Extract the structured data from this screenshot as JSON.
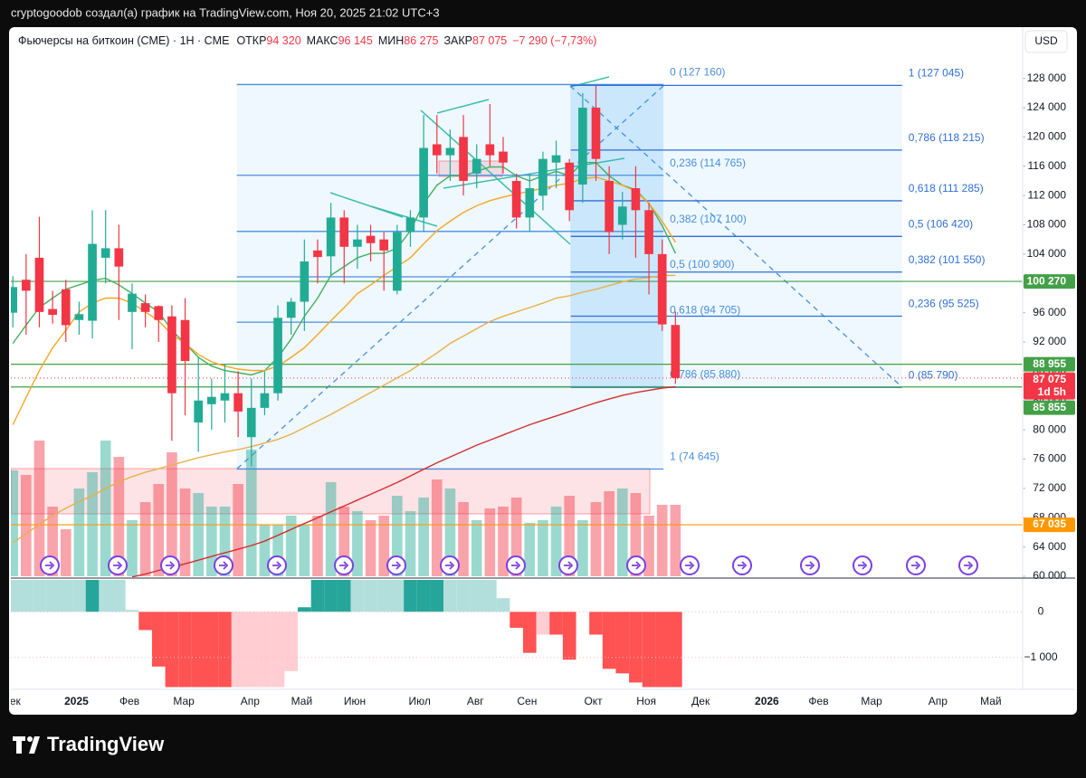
{
  "attribution": "cryptogoodob создал(а) график на TradingView.com, Ноя 20, 2025 21:02 UTC+3",
  "currency": "USD",
  "logo": "TradingView",
  "chart_data": {
    "type": "candlestick",
    "title": "Фьючерсы на биткоин (CME) · 1Н · CME",
    "legend": [
      {
        "name": "ОТКР",
        "value": "94 320"
      },
      {
        "name": "МАКС",
        "value": "96 145"
      },
      {
        "name": "МИН",
        "value": "86 275"
      },
      {
        "name": "ЗАКР",
        "value": "87 075"
      }
    ],
    "change": "−7 290 (−7,73%)",
    "xlim": [
      -0.15,
      76.2
    ],
    "xticks": [
      {
        "value": -0.1,
        "label": "Дек"
      },
      {
        "value": 4.8,
        "label": "2025"
      },
      {
        "value": 8.8,
        "label": "Фев"
      },
      {
        "value": 12.9,
        "label": "Мар"
      },
      {
        "value": 17.9,
        "label": "Апр"
      },
      {
        "value": 21.8,
        "label": "Май"
      },
      {
        "value": 25.8,
        "label": "Июн"
      },
      {
        "value": 30.7,
        "label": "Июл"
      },
      {
        "value": 34.9,
        "label": "Авг"
      },
      {
        "value": 38.8,
        "label": "Сен"
      },
      {
        "value": 43.8,
        "label": "Окт"
      },
      {
        "value": 47.8,
        "label": "Ноя"
      },
      {
        "value": 51.9,
        "label": "Дек"
      },
      {
        "value": 56.9,
        "label": "2026"
      },
      {
        "value": 60.8,
        "label": "Фев"
      },
      {
        "value": 64.8,
        "label": "Мар"
      },
      {
        "value": 69.8,
        "label": "Апр"
      },
      {
        "value": 73.8,
        "label": "Май"
      }
    ],
    "ylim": [
      60000,
      135000
    ],
    "yticks": [
      {
        "value": 60000,
        "label": "60 000"
      },
      {
        "value": 64000,
        "label": "64 000"
      },
      {
        "value": 68000,
        "label": "68 000"
      },
      {
        "value": 72000,
        "label": "72 000"
      },
      {
        "value": 76000,
        "label": "76 000"
      },
      {
        "value": 80000,
        "label": "80 000"
      },
      {
        "value": 84000,
        "label": "84 000"
      },
      {
        "value": 88000,
        "label": "88 000"
      },
      {
        "value": 92000,
        "label": "92 000"
      },
      {
        "value": 96000,
        "label": "96 000"
      },
      {
        "value": 100000,
        "label": "100 000"
      },
      {
        "value": 104000,
        "label": "104 000"
      },
      {
        "value": 108000,
        "label": "108 000"
      },
      {
        "value": 112000,
        "label": "112 000"
      },
      {
        "value": 116000,
        "label": "116 000"
      },
      {
        "value": 120000,
        "label": "120 000"
      },
      {
        "value": 124000,
        "label": "124 000"
      },
      {
        "value": 128000,
        "label": "128 000"
      }
    ],
    "up_color": "#22ab94",
    "down_color": "#f23645",
    "open": [
      96000,
      100500,
      103500,
      96500,
      99200,
      95000,
      94900,
      103500,
      104800,
      96100,
      97300,
      96900,
      95500,
      95000,
      81000,
      83500,
      84000,
      85000,
      79000,
      83000,
      85000,
      95300,
      97500,
      104500,
      103700,
      109000,
      105000,
      106500,
      106000,
      99000,
      107000,
      109000,
      119000,
      117500,
      120000,
      115000,
      119000,
      118000,
      114000,
      109000,
      112000,
      116500,
      116500,
      113500,
      124000,
      114000,
      108000,
      113000,
      110000,
      104000,
      94320
    ],
    "high": [
      101000,
      104000,
      109100,
      99000,
      100500,
      97500,
      110000,
      110000,
      108000,
      100000,
      98500,
      97000,
      97000,
      98000,
      90000,
      87000,
      89000,
      88000,
      87000,
      88000,
      97000,
      98000,
      106000,
      106000,
      111000,
      110000,
      108000,
      108000,
      107000,
      108000,
      110000,
      123000,
      123000,
      121000,
      123000,
      119000,
      124500,
      120000,
      115000,
      115000,
      118000,
      119500,
      117000,
      126000,
      127000,
      116000,
      112500,
      116000,
      111000,
      106000,
      96145
    ],
    "low": [
      94000,
      93000,
      94000,
      94500,
      92000,
      93000,
      92500,
      100000,
      95000,
      91000,
      94000,
      92000,
      78500,
      82000,
      77000,
      80000,
      81000,
      79000,
      75000,
      82000,
      84000,
      93000,
      93500,
      100000,
      101000,
      100000,
      102000,
      103000,
      99000,
      98500,
      105000,
      107000,
      115000,
      114000,
      112000,
      113000,
      116000,
      115000,
      107500,
      107000,
      110000,
      113000,
      108500,
      111000,
      114000,
      104000,
      106000,
      103500,
      98500,
      93500,
      86275
    ],
    "close": [
      99500,
      99000,
      96100,
      95700,
      94300,
      95800,
      105400,
      104800,
      102300,
      98600,
      96100,
      95000,
      85000,
      89400,
      84000,
      84500,
      85000,
      82500,
      83000,
      85000,
      95300,
      97500,
      103000,
      103600,
      109000,
      105000,
      106000,
      105500,
      104500,
      107000,
      109000,
      118500,
      117500,
      118500,
      114000,
      117000,
      117500,
      116500,
      109000,
      113000,
      117000,
      117500,
      110000,
      124000,
      117000,
      107000,
      110500,
      110000,
      104000,
      94400,
      87075
    ],
    "volume": {
      "vlim": [
        0,
        200
      ],
      "values": [
        117,
        112,
        150,
        77,
        52,
        97,
        115,
        150,
        132,
        62,
        82,
        102,
        137,
        97,
        92,
        77,
        77,
        102,
        140,
        57,
        57,
        67,
        57,
        67,
        104,
        77,
        72,
        62,
        67,
        89,
        72,
        87,
        107,
        97,
        82,
        62,
        75,
        77,
        87,
        59,
        62,
        77,
        89,
        62,
        82,
        94,
        97,
        92,
        67,
        79,
        79
      ]
    },
    "moving_averages": [
      {
        "color": "#43b05c",
        "values": [
          91800,
          94300,
          96700,
          98000,
          99200,
          99800,
          100400,
          100700,
          99800,
          98600,
          97300,
          96100,
          93600,
          91800,
          89900,
          88700,
          88100,
          87800,
          87500,
          88100,
          89900,
          92400,
          95500,
          98000,
          101100,
          102300,
          103500,
          104100,
          104100,
          104800,
          107200,
          110900,
          113400,
          114700,
          114700,
          115300,
          115900,
          115900,
          114700,
          114000,
          114700,
          115300,
          114700,
          116500,
          116500,
          114700,
          113400,
          112800,
          110900,
          107900,
          104100
        ]
      },
      {
        "color": "#f5a623",
        "values": [
          80700,
          84400,
          88100,
          91200,
          93600,
          96100,
          97300,
          98000,
          98000,
          97300,
          96100,
          94900,
          93000,
          91800,
          90300,
          89300,
          88700,
          88300,
          88100,
          88100,
          88700,
          89900,
          91200,
          93000,
          94900,
          96700,
          98600,
          99800,
          101100,
          102300,
          103500,
          105400,
          107200,
          108500,
          109700,
          110600,
          111300,
          111800,
          112200,
          112600,
          113000,
          113400,
          113700,
          114300,
          114500,
          114000,
          113400,
          112600,
          110900,
          108500,
          105600
        ]
      },
      {
        "color": "#e8b04a",
        "values": [
          64600,
          65800,
          67100,
          68300,
          69300,
          70200,
          71000,
          72000,
          72900,
          73600,
          74200,
          74700,
          75200,
          75700,
          76200,
          76600,
          77000,
          77300,
          77700,
          78200,
          78700,
          79400,
          80300,
          81200,
          82100,
          83100,
          84100,
          85100,
          86100,
          87100,
          88100,
          89300,
          90500,
          91800,
          92800,
          93800,
          94800,
          95500,
          96100,
          96700,
          97300,
          98000,
          98300,
          98800,
          99200,
          99700,
          100200,
          100600,
          100800,
          101100,
          101100
        ]
      },
      {
        "color": "#d32f2f",
        "values": [
          null,
          null,
          null,
          null,
          null,
          null,
          null,
          null,
          null,
          59900,
          60300,
          60800,
          61200,
          61700,
          62200,
          62700,
          63200,
          63700,
          64200,
          64800,
          65600,
          66400,
          67200,
          68000,
          68800,
          69600,
          70400,
          71200,
          72000,
          72800,
          73700,
          74600,
          75500,
          76300,
          77100,
          77900,
          78600,
          79300,
          80000,
          80700,
          81300,
          81900,
          82500,
          83100,
          83700,
          84200,
          84700,
          85100,
          85400,
          85700,
          85900
        ]
      }
    ],
    "fib_retracements": [
      {
        "start": 16.9,
        "end": 49.1,
        "color": "#4a8fe0",
        "levels": [
          {
            "value": 127160,
            "label": "0 (127 160)"
          },
          {
            "value": 114765,
            "label": "0,236 (114 765)"
          },
          {
            "value": 107100,
            "label": "0,382 (107 100)"
          },
          {
            "value": 100900,
            "label": "0,5 (100 900)"
          },
          {
            "value": 94705,
            "label": "0,618 (94 705)"
          },
          {
            "value": 85880,
            "label": "0,786 (85 880)"
          },
          {
            "value": 74645,
            "label": "1 (74 645)"
          }
        ]
      },
      {
        "start": 42.1,
        "end": 67.1,
        "color": "#2e6fd8",
        "levels": [
          {
            "value": 127045,
            "label": "1 (127 045)"
          },
          {
            "value": 118215,
            "label": "0,786 (118 215)"
          },
          {
            "value": 111285,
            "label": "0,618 (111 285)"
          },
          {
            "value": 106420,
            "label": "0,5 (106 420)"
          },
          {
            "value": 101550,
            "label": "0,382 (101 550)"
          },
          {
            "value": 95525,
            "label": "0,236 (95 525)"
          },
          {
            "value": 85790,
            "label": "0 (85 790)"
          }
        ]
      }
    ],
    "price_lines": [
      {
        "value": 100270,
        "label": "100 270",
        "color": "#43a047"
      },
      {
        "value": 88955,
        "label": "88 955",
        "color": "#43a047"
      },
      {
        "value": 85855,
        "label": "85 855",
        "color": "#43a047"
      },
      {
        "value": 67035,
        "label": "67 035",
        "color": "#ff9800"
      }
    ],
    "last_price": {
      "value": 87075,
      "label": "87 075",
      "countdown": "1d 5h",
      "color": "#f23645"
    },
    "indicator": {
      "type": "histogram",
      "ylim": [
        -1700,
        720
      ],
      "yticks": [
        0,
        {
          "value": -1000,
          "label": "−1 000"
        }
      ],
      "values": [
        700,
        700,
        700,
        700,
        700,
        700,
        700,
        700,
        700,
        40,
        -400,
        -1200,
        -1650,
        -1650,
        -1650,
        -1650,
        -1650,
        -1650,
        -1650,
        -1650,
        -1650,
        -1300,
        100,
        700,
        700,
        700,
        700,
        700,
        700,
        700,
        700,
        700,
        700,
        700,
        700,
        700,
        700,
        300,
        -350,
        -900,
        -500,
        -500,
        -1050,
        0,
        -500,
        -1250,
        -1350,
        -1550,
        -1650,
        -1650,
        -1650
      ],
      "colors": [
        "#b2dfdb",
        "#b2dfdb",
        "#b2dfdb",
        "#b2dfdb",
        "#b2dfdb",
        "#b2dfdb",
        "#26a69a",
        "#b2dfdb",
        "#b2dfdb",
        "#b2dfdb",
        "#ff5252",
        "#ff5252",
        "#ff5252",
        "#ff5252",
        "#ff5252",
        "#ff5252",
        "#ff5252",
        "#ffcdd2",
        "#ffcdd2",
        "#ffcdd2",
        "#ffcdd2",
        "#ffcdd2",
        "#26a69a",
        "#26a69a",
        "#26a69a",
        "#26a69a",
        "#b2dfdb",
        "#b2dfdb",
        "#b2dfdb",
        "#b2dfdb",
        "#26a69a",
        "#26a69a",
        "#26a69a",
        "#b2dfdb",
        "#b2dfdb",
        "#b2dfdb",
        "#b2dfdb",
        "#b2dfdb",
        "#ff5252",
        "#ff5252",
        "#ffcdd2",
        "#ff5252",
        "#ff5252",
        "#ff5252",
        "#ff5252",
        "#ff5252",
        "#ff5252",
        "#ff5252",
        "#ff5252",
        "#ff5252",
        "#ff5252"
      ]
    }
  }
}
